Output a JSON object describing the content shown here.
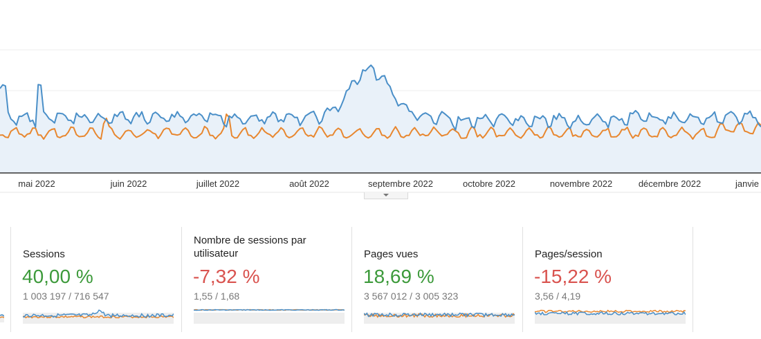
{
  "chart": {
    "months": [
      "mai 2022",
      "juin 2022",
      "juillet 2022",
      "août 2022",
      "septembre 2022",
      "octobre 2022",
      "novembre 2022",
      "décembre 2022",
      "janvie"
    ],
    "colors": {
      "blue": "#4a8fc8",
      "orange": "#e8872f",
      "fill": "#e9f1f9"
    },
    "chart_data": {
      "type": "line",
      "xlabel": "",
      "ylabel": "",
      "x_range": [
        "2022-04",
        "2023-01"
      ],
      "series": [
        {
          "key": "blue",
          "color": "#4a8fc8",
          "values": []
        },
        {
          "key": "orange",
          "color": "#e8872f",
          "values": []
        }
      ]
    }
  },
  "metrics": [
    {
      "title": "Sessions",
      "pct": "40,00 %",
      "direction": "up",
      "values": "1 003 197 / 716 547",
      "spark": "sessions"
    },
    {
      "title": "Nombre de sessions par utilisateur",
      "pct": "-7,32 %",
      "direction": "down",
      "values": "1,55 / 1,68",
      "spark": "flat"
    },
    {
      "title": "Pages vues",
      "pct": "18,69 %",
      "direction": "up",
      "values": "3 567 012 / 3 005 323",
      "spark": "pages"
    },
    {
      "title": "Pages/session",
      "pct": "-15,22 %",
      "direction": "down",
      "values": "3,56 / 4,19",
      "spark": "ratio"
    }
  ]
}
